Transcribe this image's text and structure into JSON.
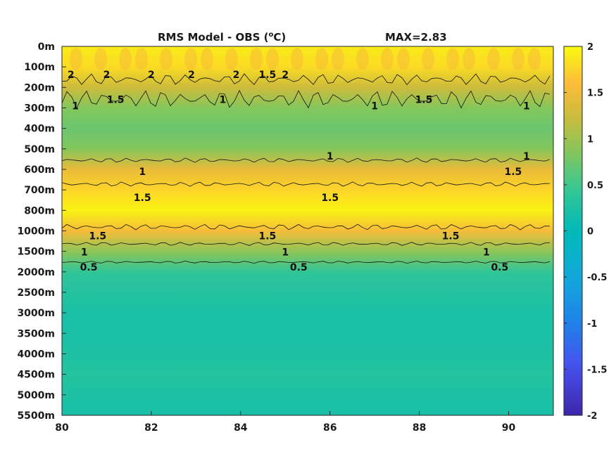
{
  "chart_data": {
    "type": "heatmap",
    "title": "RMS Model - OBS (",
    "title_sup": "o",
    "title_unit": "C)",
    "max_label": "MAX=2.83",
    "xlim": [
      80,
      91
    ],
    "xticks": [
      80,
      82,
      84,
      86,
      88,
      90
    ],
    "xtick_labels": [
      "80",
      "82",
      "84",
      "86",
      "88",
      "90"
    ],
    "depth_tick_labels": [
      "0m",
      "100m",
      "200m",
      "300m",
      "400m",
      "500m",
      "600m",
      "700m",
      "800m",
      "1000m",
      "1500m",
      "2000m",
      "2500m",
      "3000m",
      "3500m",
      "4000m",
      "4500m",
      "5000m",
      "5500m"
    ],
    "clim": [
      -2,
      2
    ],
    "colormap": "parula",
    "colorbar_ticks": [
      2,
      1.5,
      1,
      0.5,
      0,
      -0.5,
      -1,
      -1.5,
      -2
    ],
    "colorbar_tick_labels": [
      "2",
      "1.5",
      "1",
      "0.5",
      "0",
      "-0.5",
      "-1",
      "-1.5",
      "-2"
    ],
    "depth_profile": [
      {
        "depth": "0m",
        "value": 1.9
      },
      {
        "depth": "100m",
        "value": 1.8
      },
      {
        "depth": "200m",
        "value": 1.25
      },
      {
        "depth": "300m",
        "value": 0.85
      },
      {
        "depth": "400m",
        "value": 0.72
      },
      {
        "depth": "500m",
        "value": 0.85
      },
      {
        "depth": "600m",
        "value": 1.45
      },
      {
        "depth": "700m",
        "value": 1.75
      },
      {
        "depth": "800m",
        "value": 1.95
      },
      {
        "depth": "1000m",
        "value": 1.55
      },
      {
        "depth": "1500m",
        "value": 0.9
      },
      {
        "depth": "2000m",
        "value": 0.4
      },
      {
        "depth": "2500m",
        "value": 0.3
      },
      {
        "depth": "3000m",
        "value": 0.22
      },
      {
        "depth": "3500m",
        "value": 0.22
      },
      {
        "depth": "4000m",
        "value": 0.25
      },
      {
        "depth": "4500m",
        "value": 0.3
      },
      {
        "depth": "5000m",
        "value": 0.25
      },
      {
        "depth": "5500m",
        "value": 0.2
      }
    ],
    "contour_labels": [
      {
        "text": "2",
        "x": 80.2,
        "depth": "100m"
      },
      {
        "text": "2",
        "x": 81.0,
        "depth": "100m"
      },
      {
        "text": "2",
        "x": 82.0,
        "depth": "100m"
      },
      {
        "text": "2",
        "x": 82.9,
        "depth": "100m"
      },
      {
        "text": "2",
        "x": 83.9,
        "depth": "100m"
      },
      {
        "text": "2",
        "x": 85.0,
        "depth": "100m"
      },
      {
        "text": "1.5",
        "x": 81.2,
        "depth": "200m"
      },
      {
        "text": "1.5",
        "x": 84.6,
        "depth": "100m"
      },
      {
        "text": "1.5",
        "x": 88.1,
        "depth": "200m"
      },
      {
        "text": "1",
        "x": 80.3,
        "depth": "300m"
      },
      {
        "text": "1",
        "x": 83.6,
        "depth": "200m"
      },
      {
        "text": "1",
        "x": 87.0,
        "depth": "300m"
      },
      {
        "text": "1",
        "x": 90.4,
        "depth": "300m"
      },
      {
        "text": "1",
        "x": 81.8,
        "depth": "600m"
      },
      {
        "text": "1",
        "x": 86.0,
        "depth": "500m"
      },
      {
        "text": "1",
        "x": 90.4,
        "depth": "500m"
      },
      {
        "text": "1.5",
        "x": 81.8,
        "depth": "700m"
      },
      {
        "text": "1.5",
        "x": 86.0,
        "depth": "700m"
      },
      {
        "text": "1.5",
        "x": 90.1,
        "depth": "600m"
      },
      {
        "text": "1.5",
        "x": 80.8,
        "depth": "1000m"
      },
      {
        "text": "1.5",
        "x": 84.6,
        "depth": "1000m"
      },
      {
        "text": "1.5",
        "x": 88.7,
        "depth": "1000m"
      },
      {
        "text": "1",
        "x": 80.5,
        "depth": "1500m"
      },
      {
        "text": "1",
        "x": 85.0,
        "depth": "1500m"
      },
      {
        "text": "1",
        "x": 89.5,
        "depth": "1500m"
      },
      {
        "text": "0.5",
        "x": 80.6,
        "depth": "2000m"
      },
      {
        "text": "0.5",
        "x": 85.3,
        "depth": "2000m"
      },
      {
        "text": "0.5",
        "x": 89.8,
        "depth": "2000m"
      }
    ]
  }
}
